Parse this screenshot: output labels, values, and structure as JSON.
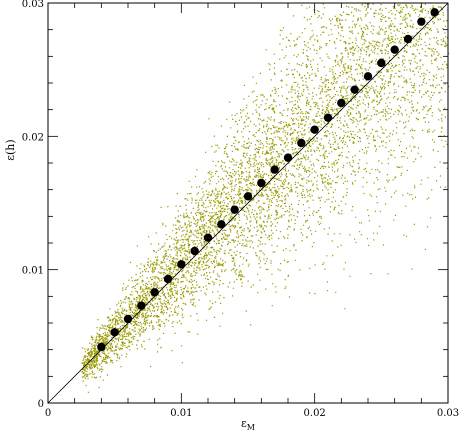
{
  "chart_data": {
    "type": "scatter",
    "title": "",
    "xlabel": "ε",
    "xlabel_sub": "M",
    "ylabel": "ε(h)",
    "xlim": [
      0,
      0.03
    ],
    "ylim": [
      0,
      0.03
    ],
    "x_ticks": [
      0,
      0.01,
      0.02,
      0.03
    ],
    "y_ticks": [
      0,
      0.01,
      0.02,
      0.03
    ],
    "x_tick_labels": [
      "0",
      "0.01",
      "0.02",
      "0.03"
    ],
    "y_tick_labels": [
      "0",
      "0.01",
      "0.02",
      "0.03"
    ],
    "grid": false,
    "reference_line": {
      "x": [
        0,
        0.03
      ],
      "y": [
        0,
        0.03
      ]
    },
    "cloud_color": "#9a9a00",
    "marker_color": "#000000",
    "series": [
      {
        "type": "scatter-markers",
        "points": [
          [
            0.004,
            0.0042
          ],
          [
            0.005,
            0.0053
          ],
          [
            0.006,
            0.0063
          ],
          [
            0.007,
            0.0073
          ],
          [
            0.008,
            0.0083
          ],
          [
            0.009,
            0.0093
          ],
          [
            0.01,
            0.0104
          ],
          [
            0.011,
            0.0114
          ],
          [
            0.012,
            0.0124
          ],
          [
            0.013,
            0.0134
          ],
          [
            0.014,
            0.0145
          ],
          [
            0.015,
            0.0155
          ],
          [
            0.016,
            0.0165
          ],
          [
            0.017,
            0.0175
          ],
          [
            0.018,
            0.0184
          ],
          [
            0.019,
            0.0195
          ],
          [
            0.02,
            0.0205
          ],
          [
            0.021,
            0.0214
          ],
          [
            0.022,
            0.0225
          ],
          [
            0.023,
            0.0235
          ],
          [
            0.024,
            0.0245
          ],
          [
            0.025,
            0.0255
          ],
          [
            0.026,
            0.0265
          ],
          [
            0.027,
            0.0273
          ],
          [
            0.028,
            0.0286
          ],
          [
            0.029,
            0.0293
          ]
        ]
      },
      {
        "type": "density-cloud",
        "x_range": [
          0.0025,
          0.03
        ],
        "center_slope": 1.05,
        "spread_fraction": 0.22
      }
    ]
  }
}
